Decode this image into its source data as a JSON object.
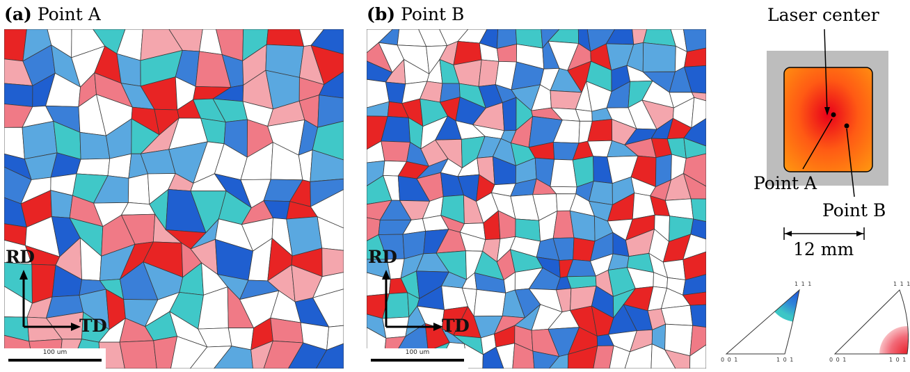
{
  "panel_a": {
    "letter": "(a)",
    "title": "Point A",
    "rd_label": "RD",
    "td_label": "TD",
    "scale_label": "100 um"
  },
  "panel_b": {
    "letter": "(b)",
    "title": "Point B",
    "rd_label": "RD",
    "td_label": "TD",
    "scale_label": "100 um"
  },
  "schematic": {
    "laser_center_label": "Laser center",
    "point_a_label": "Point A",
    "point_b_label": "Point B",
    "dimension_label": "12 mm",
    "colors": {
      "outer_square": "#bdbdbd",
      "sample_center": "#e8001a",
      "sample_edge": "#ff9a10"
    }
  },
  "ipf_legends": [
    {
      "top": "1 1 1",
      "bottom_left": "0 0 1",
      "bottom_right": "1 0 1",
      "highlight": "blue-near-111"
    },
    {
      "top": "1 1 1",
      "bottom_left": "0 0 1",
      "bottom_right": "1 0 1",
      "highlight": "red-near-101"
    }
  ],
  "grain_colors": [
    "#ffffff",
    "#ffffff",
    "#ffffff",
    "#3a7fd8",
    "#1f5fd0",
    "#5aa8e0",
    "#40c8c8",
    "#f07a86",
    "#f4a6ad",
    "#e82424"
  ]
}
